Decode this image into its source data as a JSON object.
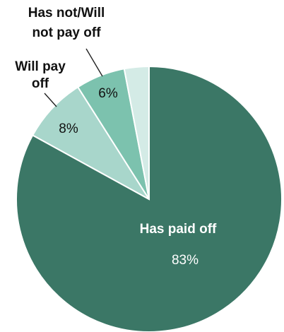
{
  "chart_data": {
    "type": "pie",
    "title": "",
    "slices": [
      {
        "label": "Has paid off",
        "value": 83,
        "value_label": "83%",
        "color": "#3b7766"
      },
      {
        "label": "Will pay off",
        "value": 8,
        "value_label": "8%",
        "color": "#a8d6cb"
      },
      {
        "label": "Has not/Will not pay off",
        "value": 6,
        "value_label": "6%",
        "color": "#7cc2ae"
      },
      {
        "label": "",
        "value": 3,
        "value_label": "",
        "color": "#d4ebe6"
      }
    ],
    "start_angle_deg": 0,
    "direction": "clockwise",
    "legend": "none"
  },
  "labels": {
    "paid_off_name": "Has paid off",
    "paid_off_value": "83%",
    "will_pay_line1": "Will pay",
    "will_pay_line2": "off",
    "will_pay_value": "8%",
    "not_pay_line1": "Has not/Will",
    "not_pay_line2": "not pay off",
    "not_pay_value": "6%"
  }
}
